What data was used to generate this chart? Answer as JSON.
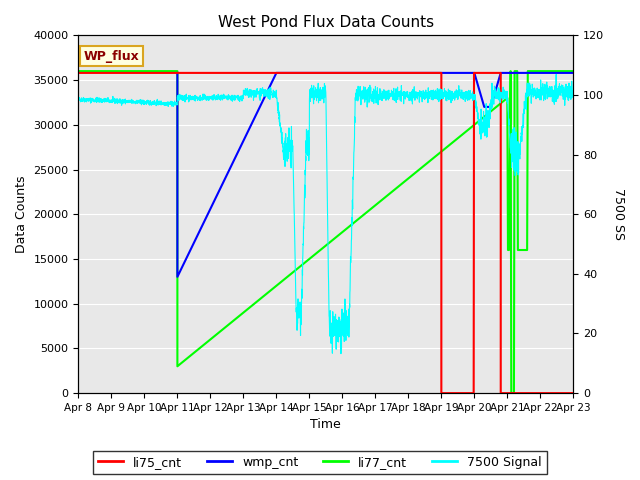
{
  "title": "West Pond Flux Data Counts",
  "xlabel": "Time",
  "ylabel_left": "Data Counts",
  "ylabel_right": "7500 SS",
  "ylim_left": [
    0,
    40000
  ],
  "ylim_right": [
    0,
    120
  ],
  "background_color": "#e8e8e8",
  "wp_flux_label": "WP_flux",
  "legend_entries": [
    "li75_cnt",
    "wmp_cnt",
    "li77_cnt",
    "7500 Signal"
  ],
  "x_tick_labels": [
    "Apr 8",
    "Apr 9",
    "Apr 10",
    "Apr 11",
    "Apr 12",
    "Apr 13",
    "Apr 14",
    "Apr 15",
    "Apr 16",
    "Apr 17",
    "Apr 18",
    "Apr 19",
    "Apr 20",
    "Apr 21",
    "Apr 22",
    "Apr 23"
  ],
  "x_tick_positions": [
    0,
    1,
    2,
    3,
    4,
    5,
    6,
    7,
    8,
    9,
    10,
    11,
    12,
    13,
    14,
    15
  ],
  "figsize": [
    6.4,
    4.8
  ],
  "dpi": 100
}
